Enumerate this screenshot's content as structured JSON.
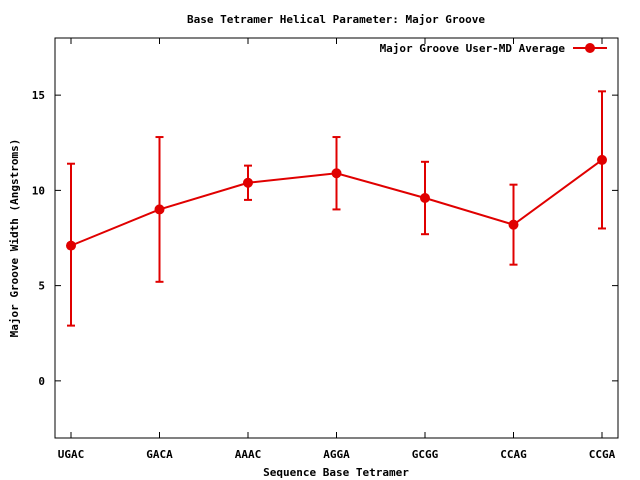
{
  "chart_data": {
    "type": "line",
    "title": "Base Tetramer Helical Parameter: Major Groove",
    "xlabel": "Sequence Base Tetramer",
    "ylabel": "Major Groove Width (Angstroms)",
    "categories": [
      "UGAC",
      "GACA",
      "AAAC",
      "AGGA",
      "GCGG",
      "CCAG",
      "CCGA"
    ],
    "ylim": [
      -3,
      18
    ],
    "yticks": [
      0,
      5,
      10,
      15
    ],
    "ytick_labels": [
      "0",
      "5",
      "10",
      "15"
    ],
    "grid": false,
    "legend": "top-right",
    "series": [
      {
        "name": "Major Groove User-MD Average",
        "color": "#e00000",
        "values": [
          7.1,
          9.0,
          10.4,
          10.9,
          9.6,
          8.2,
          11.6
        ],
        "err_low": [
          2.9,
          5.2,
          9.5,
          9.0,
          7.7,
          6.1,
          8.0
        ],
        "err_high": [
          11.4,
          12.8,
          11.3,
          12.8,
          11.5,
          10.3,
          15.2
        ]
      }
    ]
  }
}
